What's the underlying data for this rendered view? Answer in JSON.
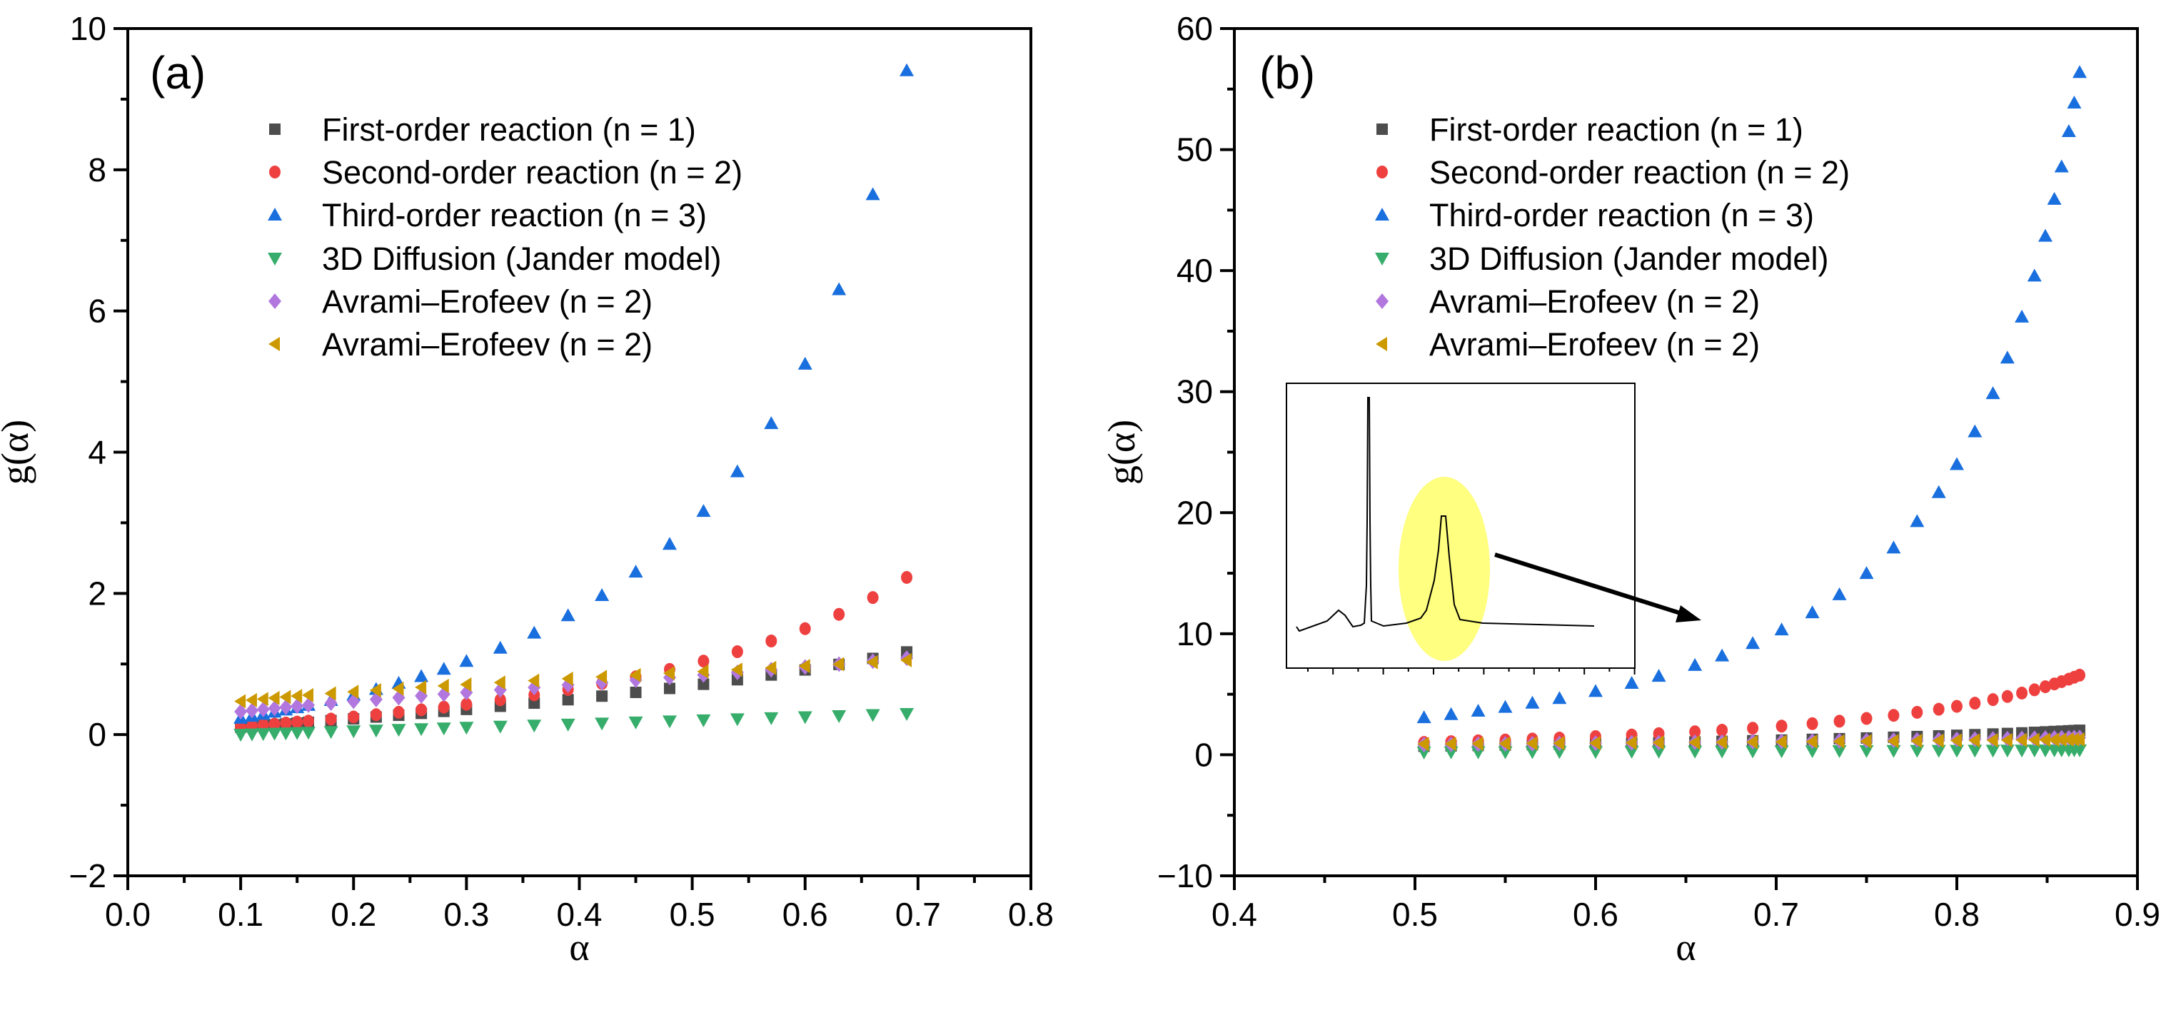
{
  "colors": {
    "first_order": "#4d4d4d",
    "second_order": "#ef4040",
    "third_order": "#1a6fdf",
    "jander": "#37ad6b",
    "avrami_2": "#b177de",
    "avrami_3": "#cc9900",
    "highlight": "#ffff80"
  },
  "chart_data": [
    {
      "type": "scatter",
      "panel_label": "(a)",
      "xlabel": "α",
      "ylabel": "g(α)",
      "xlim": [
        0.0,
        0.8
      ],
      "ylim": [
        -2,
        10
      ],
      "xticks": [
        "0.0",
        "0.1",
        "0.2",
        "0.3",
        "0.4",
        "0.5",
        "0.6",
        "0.7",
        "0.8"
      ],
      "yticks": [
        "−2",
        "0",
        "2",
        "4",
        "6",
        "8",
        "10"
      ],
      "legend_position": "top-center",
      "x": [
        0.1,
        0.11,
        0.12,
        0.13,
        0.14,
        0.15,
        0.16,
        0.18,
        0.2,
        0.22,
        0.24,
        0.26,
        0.28,
        0.3,
        0.33,
        0.36,
        0.39,
        0.42,
        0.45,
        0.48,
        0.51,
        0.54,
        0.57,
        0.6,
        0.63,
        0.66,
        0.69
      ],
      "series": [
        {
          "name": "First-order reaction (n = 1)",
          "marker": "square",
          "color_key": "first_order",
          "values": [
            0.105,
            0.117,
            0.128,
            0.139,
            0.151,
            0.163,
            0.174,
            0.199,
            0.223,
            0.249,
            0.274,
            0.301,
            0.329,
            0.357,
            0.401,
            0.446,
            0.494,
            0.545,
            0.598,
            0.654,
            0.713,
            0.777,
            0.844,
            0.916,
            0.994,
            1.079,
            1.171
          ]
        },
        {
          "name": "Second-order reaction (n = 2)",
          "marker": "circle",
          "color_key": "second_order",
          "values": [
            0.111,
            0.124,
            0.136,
            0.149,
            0.163,
            0.177,
            0.191,
            0.22,
            0.25,
            0.282,
            0.316,
            0.351,
            0.389,
            0.429,
            0.493,
            0.563,
            0.639,
            0.724,
            0.818,
            0.923,
            1.041,
            1.174,
            1.326,
            1.5,
            1.703,
            1.941,
            2.226
          ]
        },
        {
          "name": "Third-order reaction (n = 3)",
          "marker": "triangle-up",
          "color_key": "third_order",
          "values": [
            0.235,
            0.263,
            0.291,
            0.321,
            0.352,
            0.384,
            0.417,
            0.487,
            0.563,
            0.644,
            0.731,
            0.826,
            0.929,
            1.041,
            1.228,
            1.441,
            1.688,
            1.973,
            2.306,
            2.698,
            3.165,
            3.726,
            4.408,
            5.25,
            6.305,
            7.651,
            9.406
          ]
        },
        {
          "name": "3D Diffusion (Jander model)",
          "marker": "triangle-down",
          "color_key": "jander",
          "values": [
            0.0,
            0.005,
            0.01,
            0.015,
            0.02,
            0.025,
            0.03,
            0.04,
            0.05,
            0.06,
            0.07,
            0.08,
            0.09,
            0.1,
            0.115,
            0.13,
            0.145,
            0.16,
            0.175,
            0.19,
            0.205,
            0.22,
            0.235,
            0.25,
            0.265,
            0.28,
            0.295
          ]
        },
        {
          "name": "Avrami–Erofeev (n = 2)",
          "marker": "diamond",
          "color_key": "avrami_2",
          "values": [
            0.325,
            0.341,
            0.358,
            0.373,
            0.388,
            0.403,
            0.418,
            0.446,
            0.472,
            0.498,
            0.524,
            0.549,
            0.573,
            0.597,
            0.633,
            0.668,
            0.703,
            0.738,
            0.773,
            0.809,
            0.845,
            0.881,
            0.919,
            0.957,
            0.997,
            1.039,
            1.082
          ]
        },
        {
          "name": "Avrami–Erofeev (n = 2)",
          "marker": "triangle-left",
          "color_key": "avrami_3",
          "values": [
            0.472,
            0.488,
            0.504,
            0.518,
            0.532,
            0.546,
            0.559,
            0.583,
            0.606,
            0.629,
            0.65,
            0.67,
            0.69,
            0.709,
            0.737,
            0.764,
            0.791,
            0.817,
            0.842,
            0.868,
            0.894,
            0.919,
            0.945,
            0.971,
            0.998,
            1.026,
            1.054
          ]
        }
      ]
    },
    {
      "type": "scatter",
      "panel_label": "(b)",
      "xlabel": "α",
      "ylabel": "g(α)",
      "xlim": [
        0.4,
        0.9
      ],
      "ylim": [
        -10,
        60
      ],
      "xticks": [
        "0.4",
        "0.5",
        "0.6",
        "0.7",
        "0.8",
        "0.9"
      ],
      "yticks": [
        "−10",
        "0",
        "10",
        "20",
        "30",
        "40",
        "50",
        "60"
      ],
      "legend_position": "top-center",
      "inset": "spectrum with highlighted peak, arrow pointing to curve",
      "x": [
        0.505,
        0.52,
        0.535,
        0.55,
        0.565,
        0.58,
        0.6,
        0.62,
        0.635,
        0.655,
        0.67,
        0.687,
        0.703,
        0.72,
        0.735,
        0.75,
        0.765,
        0.778,
        0.79,
        0.8,
        0.81,
        0.82,
        0.828,
        0.836,
        0.843,
        0.849,
        0.854,
        0.858,
        0.862,
        0.865,
        0.868
      ],
      "series": [
        {
          "name": "First-order reaction (n = 1)",
          "marker": "square",
          "color_key": "first_order",
          "values": [
            0.703,
            0.734,
            0.766,
            0.799,
            0.832,
            0.868,
            0.916,
            0.968,
            1.008,
            1.064,
            1.109,
            1.162,
            1.214,
            1.273,
            1.328,
            1.386,
            1.448,
            1.505,
            1.561,
            1.609,
            1.661,
            1.715,
            1.76,
            1.808,
            1.852,
            1.891,
            1.924,
            1.952,
            1.981,
            2.003,
            2.025
          ]
        },
        {
          "name": "Second-order reaction (n = 2)",
          "marker": "circle",
          "color_key": "second_order",
          "values": [
            1.02,
            1.083,
            1.151,
            1.222,
            1.299,
            1.381,
            1.5,
            1.632,
            1.74,
            1.899,
            2.03,
            2.195,
            2.367,
            2.571,
            2.774,
            3.0,
            3.255,
            3.505,
            3.762,
            4.0,
            4.263,
            4.556,
            4.814,
            5.098,
            5.369,
            5.623,
            5.849,
            6.042,
            6.246,
            6.407,
            6.576
          ]
        },
        {
          "name": "Third-order reaction (n = 3)",
          "marker": "triangle-up",
          "color_key": "third_order",
          "values": [
            3.081,
            3.34,
            3.625,
            3.938,
            4.285,
            4.669,
            5.25,
            5.925,
            6.506,
            7.402,
            8.183,
            9.207,
            10.336,
            11.755,
            13.24,
            15.0,
            17.108,
            19.29,
            21.68,
            24.0,
            26.7,
            29.86,
            32.8,
            36.18,
            39.57,
            42.86,
            45.91,
            48.59,
            51.51,
            53.87,
            56.39
          ]
        },
        {
          "name": "3D Diffusion (Jander model)",
          "marker": "triangle-down",
          "color_key": "jander",
          "values": [
            0.203,
            0.21,
            0.218,
            0.225,
            0.233,
            0.24,
            0.25,
            0.26,
            0.268,
            0.278,
            0.285,
            0.294,
            0.302,
            0.31,
            0.318,
            0.325,
            0.333,
            0.339,
            0.345,
            0.35,
            0.355,
            0.36,
            0.364,
            0.368,
            0.372,
            0.375,
            0.377,
            0.379,
            0.381,
            0.383,
            0.384
          ]
        },
        {
          "name": "Avrami–Erofeev (n = 2)",
          "marker": "diamond",
          "color_key": "avrami_2",
          "values": [
            0.839,
            0.857,
            0.875,
            0.894,
            0.912,
            0.931,
            0.957,
            0.984,
            1.004,
            1.032,
            1.053,
            1.078,
            1.102,
            1.128,
            1.152,
            1.177,
            1.203,
            1.227,
            1.249,
            1.269,
            1.289,
            1.31,
            1.327,
            1.345,
            1.361,
            1.375,
            1.387,
            1.397,
            1.407,
            1.415,
            1.423
          ]
        },
        {
          "name": "Avrami–Erofeev (n = 2)",
          "marker": "triangle-left",
          "color_key": "avrami_3",
          "values": [
            0.889,
            0.902,
            0.915,
            0.928,
            0.941,
            0.954,
            0.971,
            0.989,
            1.003,
            1.021,
            1.035,
            1.051,
            1.067,
            1.084,
            1.099,
            1.115,
            1.131,
            1.146,
            1.16,
            1.172,
            1.184,
            1.197,
            1.207,
            1.218,
            1.228,
            1.236,
            1.244,
            1.25,
            1.256,
            1.26,
            1.265
          ]
        }
      ]
    }
  ]
}
